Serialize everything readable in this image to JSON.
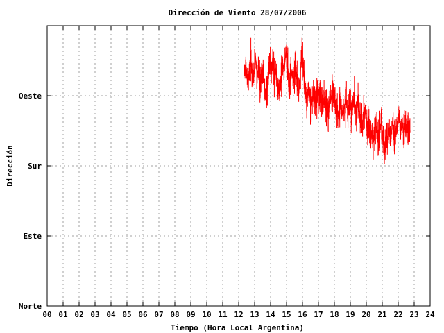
{
  "chart_data": {
    "type": "line",
    "title": "Dirección de Viento 28/07/2006",
    "xlabel": "Tiempo (Hora Local Argentina)",
    "ylabel": "Dirección",
    "xlim": [
      0,
      24
    ],
    "ylim": [
      0,
      360
    ],
    "x_ticks": [
      {
        "value": 0,
        "label": "00"
      },
      {
        "value": 1,
        "label": "01"
      },
      {
        "value": 2,
        "label": "02"
      },
      {
        "value": 3,
        "label": "03"
      },
      {
        "value": 4,
        "label": "04"
      },
      {
        "value": 5,
        "label": "05"
      },
      {
        "value": 6,
        "label": "06"
      },
      {
        "value": 7,
        "label": "07"
      },
      {
        "value": 8,
        "label": "08"
      },
      {
        "value": 9,
        "label": "09"
      },
      {
        "value": 10,
        "label": "10"
      },
      {
        "value": 11,
        "label": "11"
      },
      {
        "value": 12,
        "label": "12"
      },
      {
        "value": 13,
        "label": "13"
      },
      {
        "value": 14,
        "label": "14"
      },
      {
        "value": 15,
        "label": "15"
      },
      {
        "value": 16,
        "label": "16"
      },
      {
        "value": 17,
        "label": "17"
      },
      {
        "value": 18,
        "label": "18"
      },
      {
        "value": 19,
        "label": "19"
      },
      {
        "value": 20,
        "label": "20"
      },
      {
        "value": 21,
        "label": "21"
      },
      {
        "value": 22,
        "label": "22"
      },
      {
        "value": 23,
        "label": "23"
      },
      {
        "value": 24,
        "label": "24"
      }
    ],
    "y_ticks": [
      {
        "value": 0,
        "label": "Norte"
      },
      {
        "value": 90,
        "label": "Este"
      },
      {
        "value": 180,
        "label": "Sur"
      },
      {
        "value": 270,
        "label": "Oeste"
      }
    ],
    "grid": true,
    "series_color": "#ff0000",
    "series": [
      {
        "x": [
          12.35,
          12.45,
          12.55,
          12.65,
          12.75,
          12.85,
          12.95,
          13.05,
          13.15,
          13.25,
          13.35,
          13.45,
          13.55,
          13.65,
          13.75,
          13.85,
          13.95,
          14.05,
          14.15,
          14.25,
          14.35,
          14.45,
          14.55,
          14.65,
          14.75,
          14.85,
          14.95,
          15.05,
          15.15,
          15.25,
          15.35,
          15.45,
          15.55,
          15.65,
          15.75,
          15.85,
          15.95,
          16.05,
          16.15,
          16.25,
          16.35,
          16.45,
          16.55,
          16.65,
          16.75,
          16.85,
          16.95,
          17.05,
          17.15,
          17.25,
          17.35,
          17.45,
          17.55,
          17.65,
          17.75,
          17.85,
          17.95,
          18.05,
          18.15,
          18.25,
          18.35,
          18.45,
          18.55,
          18.65,
          18.75,
          18.85,
          18.95,
          19.05,
          19.15,
          19.25,
          19.35,
          19.45,
          19.55,
          19.65,
          19.75,
          19.85,
          19.95,
          20.05,
          20.15,
          20.25,
          20.35,
          20.45,
          20.55,
          20.65,
          20.75,
          20.85,
          20.95,
          21.05,
          21.15,
          21.25,
          21.35,
          21.45,
          21.55,
          21.65,
          21.75,
          21.85,
          21.95,
          22.05,
          22.15,
          22.25,
          22.35,
          22.45,
          22.55,
          22.65,
          22.75
        ],
        "y": [
          300,
          310,
          288,
          296,
          318,
          302,
          292,
          322,
          298,
          306,
          284,
          292,
          300,
          276,
          266,
          296,
          314,
          298,
          322,
          286,
          304,
          284,
          272,
          290,
          312,
          300,
          326,
          316,
          280,
          292,
          302,
          286,
          306,
          296,
          274,
          294,
          326,
          312,
          282,
          264,
          278,
          270,
          258,
          268,
          270,
          262,
          272,
          278,
          270,
          252,
          266,
          262,
          242,
          256,
          264,
          270,
          274,
          258,
          252,
          244,
          262,
          248,
          252,
          256,
          262,
          246,
          264,
          250,
          258,
          268,
          244,
          262,
          248,
          240,
          234,
          254,
          252,
          222,
          230,
          218,
          224,
          210,
          232,
          228,
          214,
          226,
          236,
          214,
          204,
          222,
          212,
          226,
          218,
          238,
          214,
          228,
          232,
          246,
          226,
          236,
          224,
          232,
          228,
          230,
          224
        ]
      }
    ]
  }
}
